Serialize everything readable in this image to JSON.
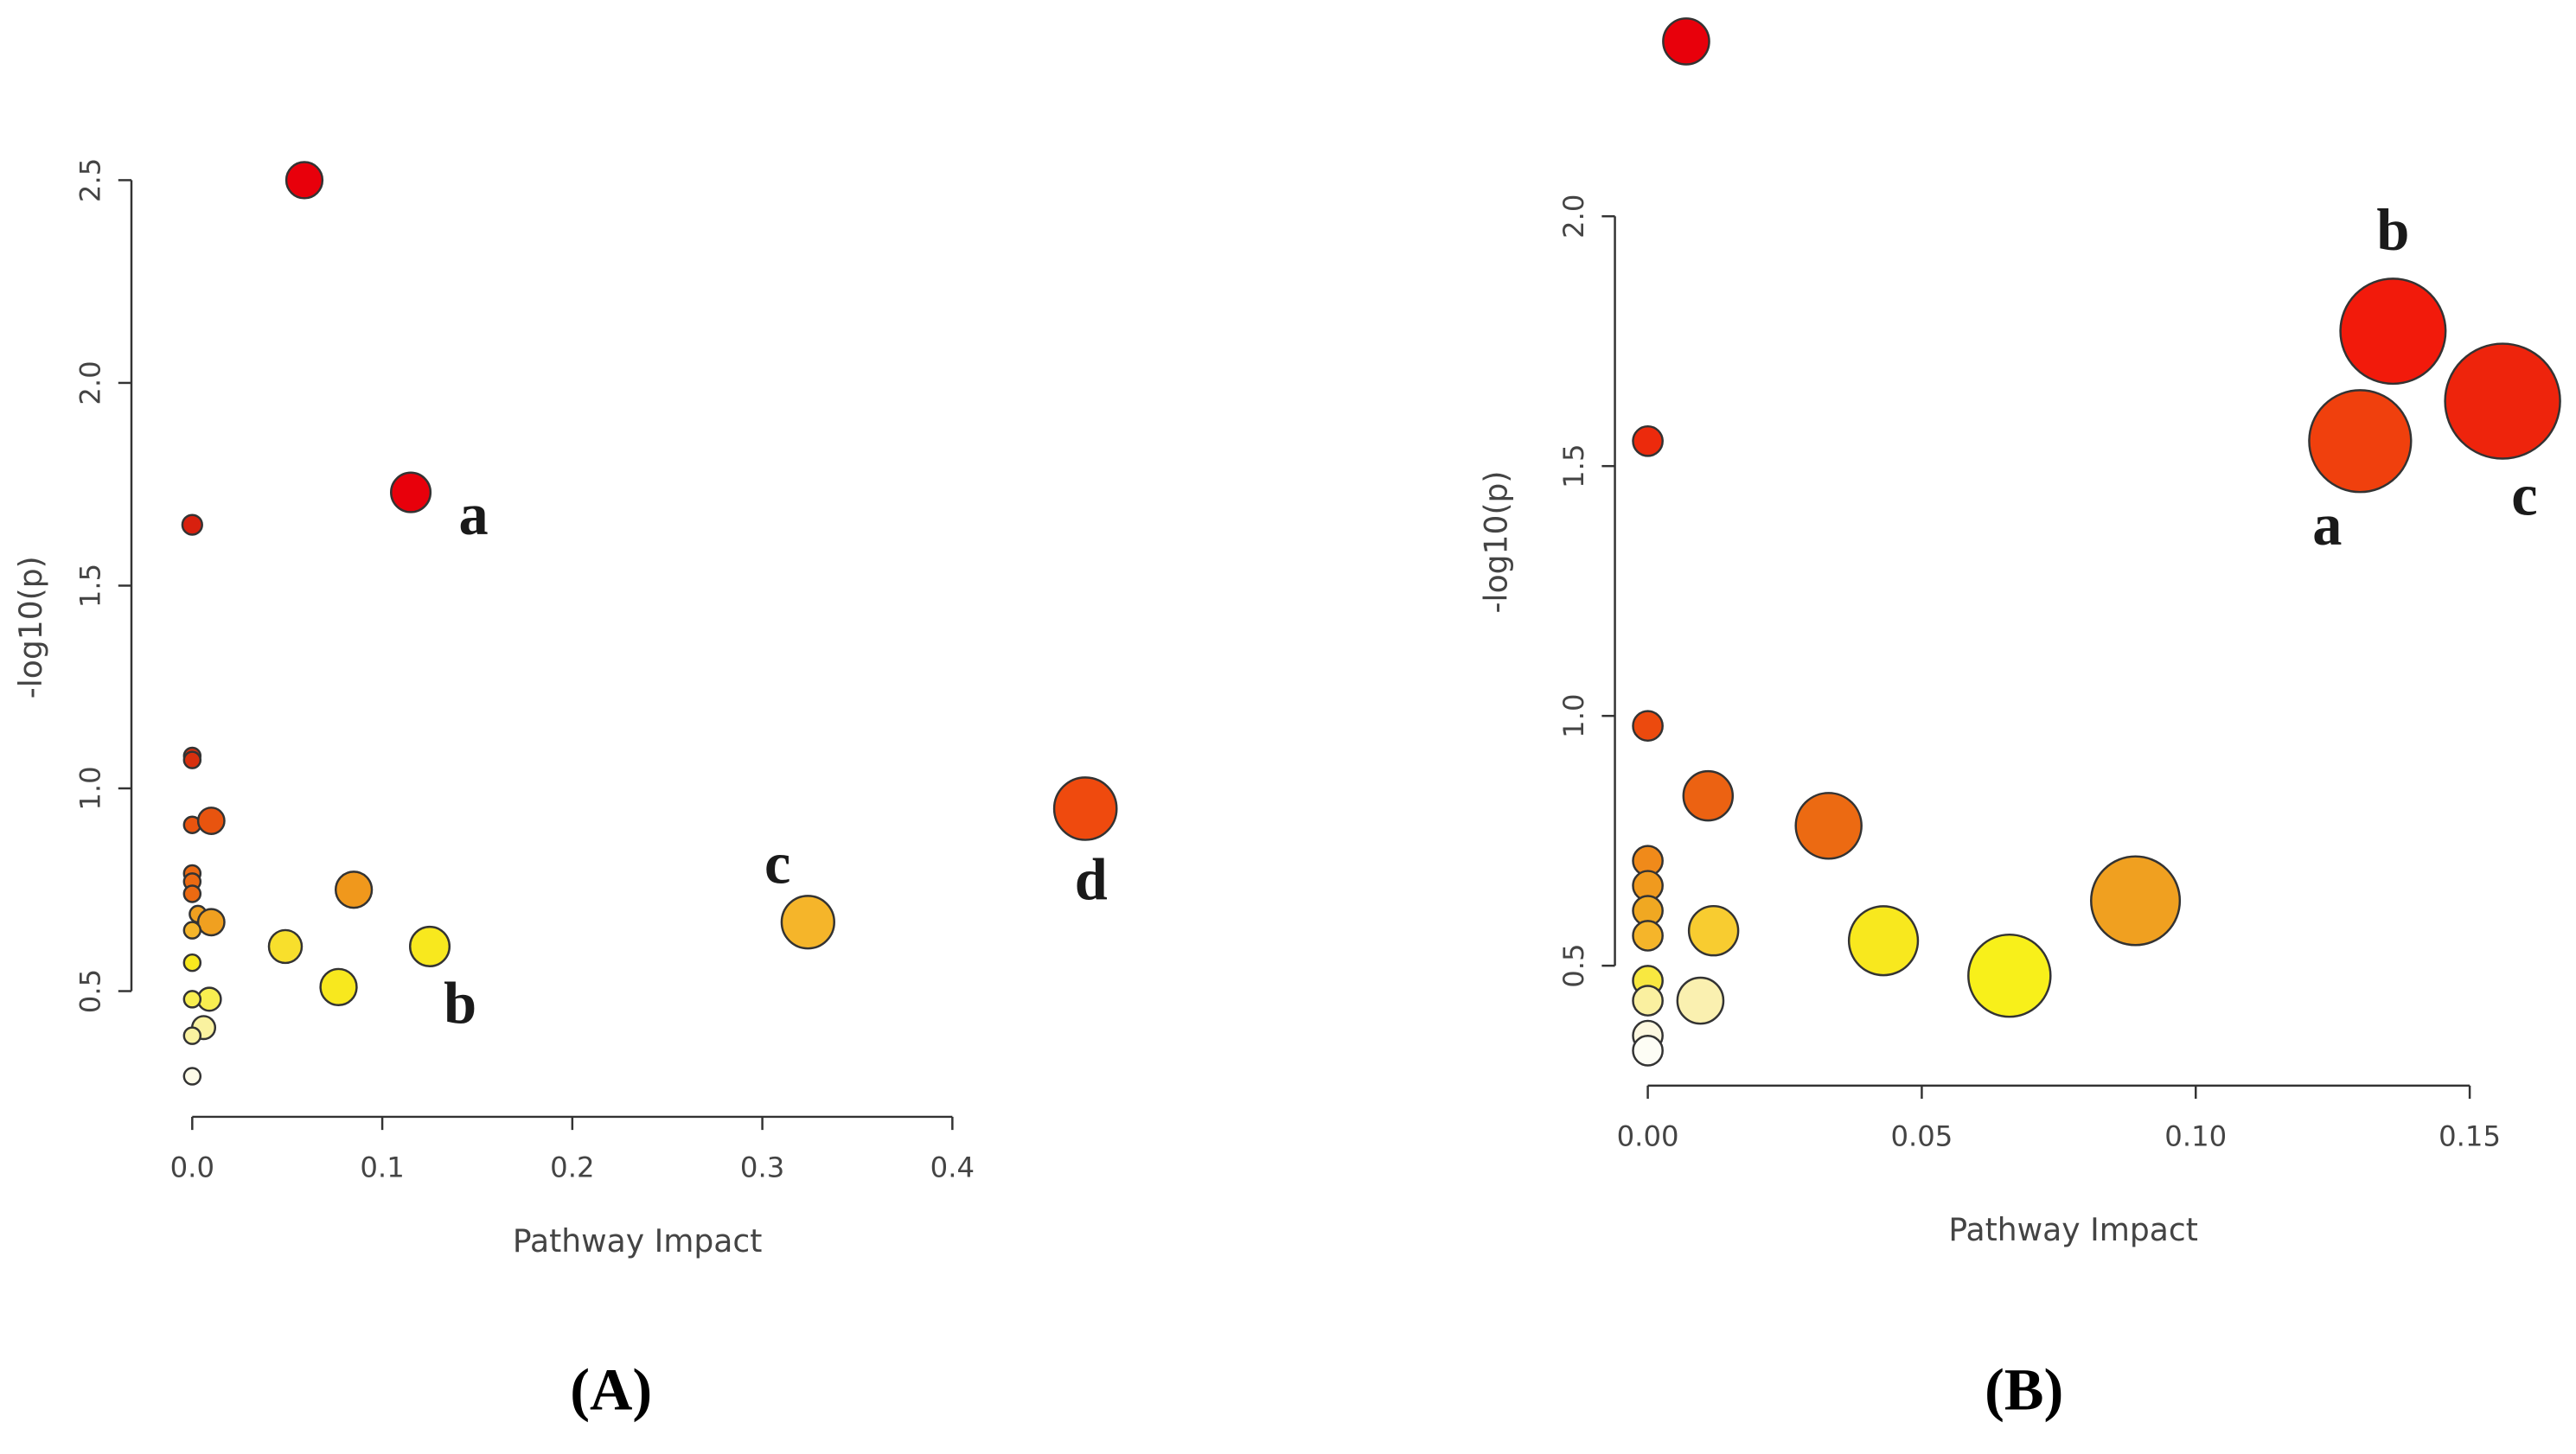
{
  "chart_data": [
    {
      "type": "scatter",
      "title": "(A)",
      "xlabel": "Pathway Impact",
      "ylabel": "-log10(p)",
      "xlim": [
        -0.032,
        0.504
      ],
      "ylim": [
        0.19,
        2.6
      ],
      "xticks": [
        {
          "value": 0,
          "label": "0.0"
        },
        0.1,
        0.2,
        0.3,
        0.4
      ],
      "yticks": [
        0.5,
        {
          "value": 1,
          "label": "1.0"
        },
        1.5,
        {
          "value": 2,
          "label": "2.0"
        },
        2.5
      ],
      "x": [
        0.059,
        0.115,
        0,
        0,
        0,
        0,
        0.01,
        0,
        0,
        0,
        0.085,
        0.003,
        0.01,
        0,
        0.049,
        0.125,
        0,
        0.077,
        0.009,
        0,
        0.006,
        0,
        0,
        0.324,
        0.47
      ],
      "values": [
        2.5,
        1.73,
        1.65,
        1.08,
        1.07,
        0.91,
        0.92,
        0.79,
        0.77,
        0.74,
        0.75,
        0.69,
        0.67,
        0.65,
        0.61,
        0.61,
        0.57,
        0.51,
        0.48,
        0.48,
        0.41,
        0.39,
        0.29,
        0.67,
        0.95
      ],
      "sizes": [
        11,
        12,
        6,
        5,
        5,
        5,
        8,
        5,
        5,
        5,
        11,
        5,
        8,
        5,
        10,
        12,
        5,
        11,
        7,
        5,
        7,
        5,
        5,
        16,
        19
      ],
      "colors": [
        "#e8000b",
        "#e8000b",
        "#d8200e",
        "#d8300e",
        "#d8300e",
        "#e8540f",
        "#e8540f",
        "#ec6a12",
        "#ec6a12",
        "#ec6a12",
        "#f0981c",
        "#f0a020",
        "#f0a020",
        "#f5b52a",
        "#f8df2c",
        "#f8e81e",
        "#f8e81e",
        "#f8e81e",
        "#f8ee50",
        "#f8ee50",
        "#faf2a0",
        "#faf2a0",
        "#fdfbe8",
        "#f5b52a",
        "#ef4a0e"
      ],
      "annotations": [
        {
          "text": "a",
          "x": 0.148,
          "y": 1.66
        },
        {
          "text": "b",
          "x": 0.141,
          "y": 0.455
        },
        {
          "text": "c",
          "x": 0.308,
          "y": 0.8
        },
        {
          "text": "d",
          "x": 0.473,
          "y": 0.76
        }
      ]
    },
    {
      "type": "scatter",
      "title": "(B)",
      "xlabel": "Pathway Impact",
      "ylabel": "-log10(p)",
      "xlim": [
        -0.006,
        0.167
      ],
      "ylim": [
        0.26,
        2.4
      ],
      "xticks": [
        {
          "value": 0,
          "label": "0.00"
        },
        0.05,
        {
          "value": 0.1,
          "label": "0.10"
        },
        0.15
      ],
      "yticks": [
        0.5,
        {
          "value": 1,
          "label": "1.0"
        },
        1.5,
        {
          "value": 2,
          "label": "2.0"
        }
      ],
      "x": [
        0.007,
        0,
        0,
        0.011,
        0.033,
        0,
        0,
        0,
        0,
        0.012,
        0.043,
        0.066,
        0.089,
        0,
        0,
        0.0096,
        0,
        0,
        0.13,
        0.136,
        0.156
      ],
      "values": [
        2.35,
        1.55,
        0.98,
        0.84,
        0.78,
        0.71,
        0.66,
        0.61,
        0.56,
        0.57,
        0.55,
        0.48,
        0.63,
        0.47,
        0.43,
        0.43,
        0.36,
        0.33,
        1.55,
        1.77,
        1.63
      ],
      "sizes": [
        14,
        9,
        9,
        15,
        20,
        9,
        9,
        9,
        9,
        15,
        21,
        25,
        27,
        9,
        9,
        14,
        9,
        9,
        31,
        32,
        35
      ],
      "colors": [
        "#e8000b",
        "#ec2a0c",
        "#ec4a0e",
        "#ec6212",
        "#ec6a12",
        "#f08a1a",
        "#f09a1e",
        "#f0a822",
        "#f5b52a",
        "#f8cc30",
        "#f8e81e",
        "#f8f01a",
        "#f0a020",
        "#f8e840",
        "#faf0a0",
        "#faf0b0",
        "#fdf8e0",
        "#fdfdf5",
        "#f0400d",
        "#f21a0b",
        "#ee240c"
      ],
      "annotations": [
        {
          "text": "a",
          "x": 0.124,
          "y": 1.37
        },
        {
          "text": "b",
          "x": 0.136,
          "y": 1.96
        },
        {
          "text": "c",
          "x": 0.16,
          "y": 1.43
        }
      ]
    }
  ]
}
